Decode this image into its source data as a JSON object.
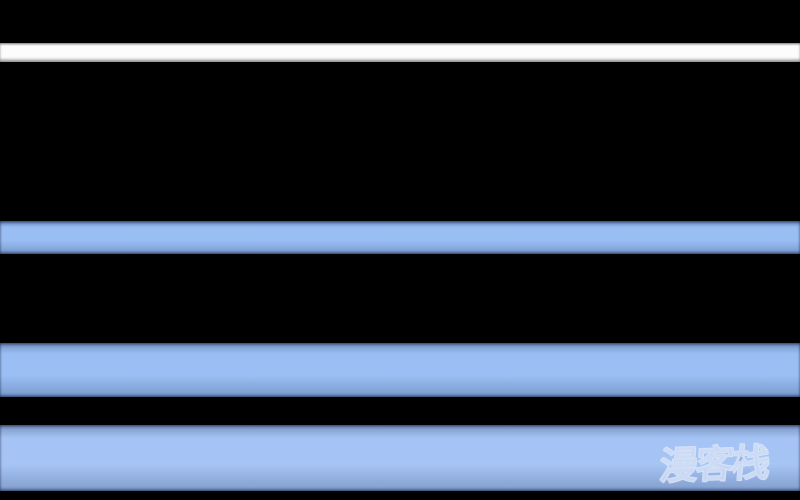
{
  "frame": {
    "watermark": {
      "text": "漫客栈",
      "fill": "#90a8d6",
      "outline": "#dde8fa"
    },
    "colors": {
      "letterbox_black": "#000000",
      "white_stripe": "#fcfcfc",
      "blue_stripe_1": "#93baf3",
      "blue_stripe_2": "#95bbf3",
      "blue_stripe_3": "#a0c0f3"
    }
  }
}
